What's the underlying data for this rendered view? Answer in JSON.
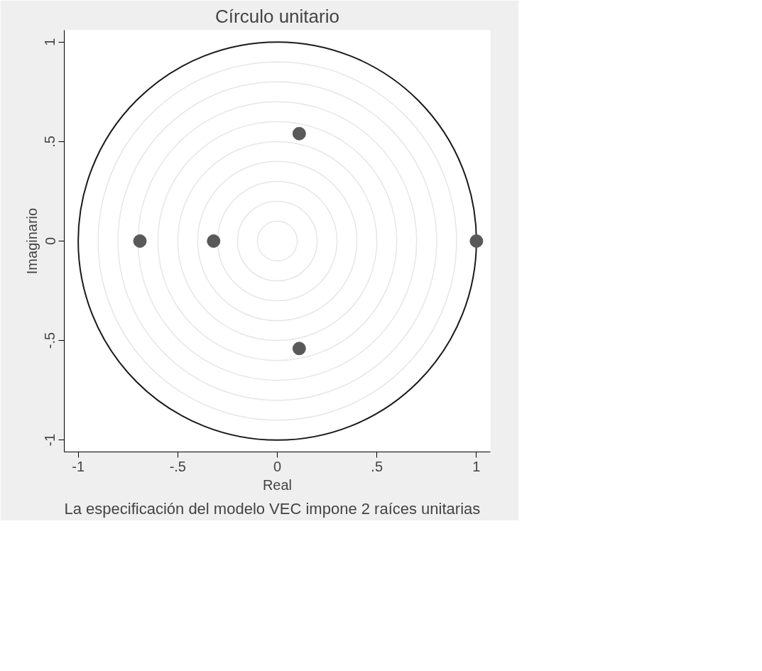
{
  "chart_data": {
    "type": "scatter",
    "title": "Círculo unitario",
    "xlabel": "Real",
    "ylabel": "Imaginario",
    "annotations": [
      "La especificación del modelo VEC impone 2 raíces unitarias"
    ],
    "xlim": [
      -1.07,
      1.07
    ],
    "ylim": [
      -1.06,
      1.06
    ],
    "xticks": [
      -1,
      {
        "value": -0.5,
        "label": "-.5"
      },
      0,
      {
        "value": 0.5,
        "label": ".5"
      },
      1
    ],
    "yticks": [
      -1,
      {
        "value": -0.5,
        "label": "-.5"
      },
      0,
      {
        "value": 0.5,
        "label": ".5"
      },
      1
    ],
    "marker": "circle",
    "series": [
      {
        "type": "scatter",
        "color": "#595959",
        "x": [
          -0.69,
          -0.32,
          0.11,
          0.11,
          1
        ],
        "values": [
          0,
          0,
          0.54,
          -0.54,
          0
        ]
      }
    ]
  }
}
